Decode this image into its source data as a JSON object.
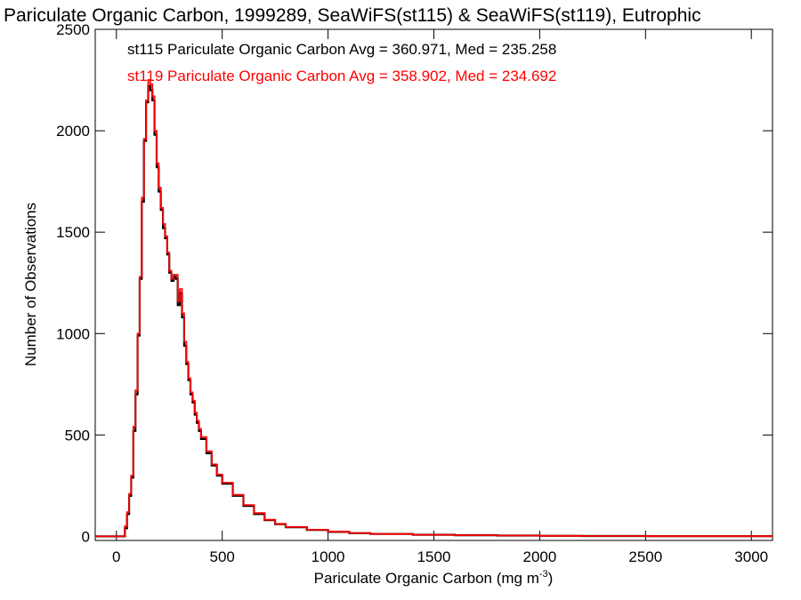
{
  "chart_data": {
    "type": "line",
    "title": "Pariculate Organic Carbon, 1999289, SeaWiFS(st115) & SeaWiFS(st119), Eutrophic",
    "xlabel": "Pariculate Organic Carbon (mg m",
    "xlabel_sup": "-3",
    "xlabel_close": ")",
    "ylabel": "Number of Observations",
    "xlim": [
      -100,
      3100
    ],
    "ylim": [
      -20,
      2500
    ],
    "x_ticks": [
      0,
      500,
      1000,
      1500,
      2000,
      2500,
      3000
    ],
    "y_ticks": [
      0,
      500,
      1000,
      1500,
      2000,
      2500
    ],
    "legend_placement": "top-left",
    "series": [
      {
        "name": "st115 Pariculate Organic Carbon Avg = 360.971, Med = 235.258",
        "color": "#000000",
        "x": [
          -100,
          25,
          40,
          50,
          60,
          70,
          80,
          90,
          100,
          110,
          120,
          130,
          140,
          150,
          160,
          170,
          180,
          190,
          200,
          210,
          220,
          230,
          240,
          250,
          260,
          270,
          280,
          290,
          300,
          310,
          320,
          330,
          340,
          350,
          360,
          370,
          380,
          390,
          400,
          425,
          450,
          475,
          500,
          550,
          600,
          650,
          700,
          750,
          800,
          900,
          1000,
          1100,
          1200,
          1400,
          1600,
          1800,
          2000,
          2200,
          2500,
          2800,
          3100
        ],
        "values": [
          0,
          0,
          40,
          110,
          200,
          290,
          520,
          700,
          990,
          1270,
          1650,
          1950,
          2140,
          2220,
          2200,
          2150,
          1980,
          1820,
          1700,
          1610,
          1520,
          1470,
          1390,
          1300,
          1260,
          1280,
          1270,
          1140,
          1200,
          1080,
          940,
          850,
          770,
          700,
          660,
          600,
          560,
          520,
          480,
          410,
          350,
          300,
          260,
          200,
          150,
          110,
          80,
          60,
          45,
          32,
          22,
          16,
          12,
          8,
          6,
          4,
          3,
          2,
          1,
          1,
          0
        ]
      },
      {
        "name": "st119 Pariculate Organic Carbon Avg = 358.902, Med = 234.692",
        "color": "#ff0000",
        "x": [
          -100,
          25,
          40,
          50,
          60,
          70,
          80,
          90,
          100,
          110,
          120,
          130,
          140,
          150,
          160,
          170,
          180,
          190,
          200,
          210,
          220,
          230,
          240,
          250,
          260,
          270,
          280,
          290,
          300,
          310,
          320,
          330,
          340,
          350,
          360,
          370,
          380,
          390,
          400,
          425,
          450,
          475,
          500,
          550,
          600,
          650,
          700,
          750,
          800,
          900,
          1000,
          1100,
          1200,
          1400,
          1600,
          1800,
          2000,
          2200,
          2500,
          2800,
          3100
        ],
        "values": [
          0,
          0,
          50,
          120,
          210,
          300,
          540,
          720,
          1000,
          1280,
          1670,
          1960,
          2150,
          2250,
          2230,
          2170,
          2000,
          1840,
          1720,
          1620,
          1540,
          1480,
          1400,
          1310,
          1270,
          1290,
          1290,
          1160,
          1220,
          1100,
          960,
          860,
          780,
          710,
          670,
          610,
          570,
          530,
          490,
          420,
          355,
          305,
          265,
          205,
          155,
          115,
          82,
          62,
          46,
          33,
          23,
          17,
          12,
          8,
          6,
          4,
          3,
          2,
          1,
          1,
          0
        ]
      }
    ]
  }
}
